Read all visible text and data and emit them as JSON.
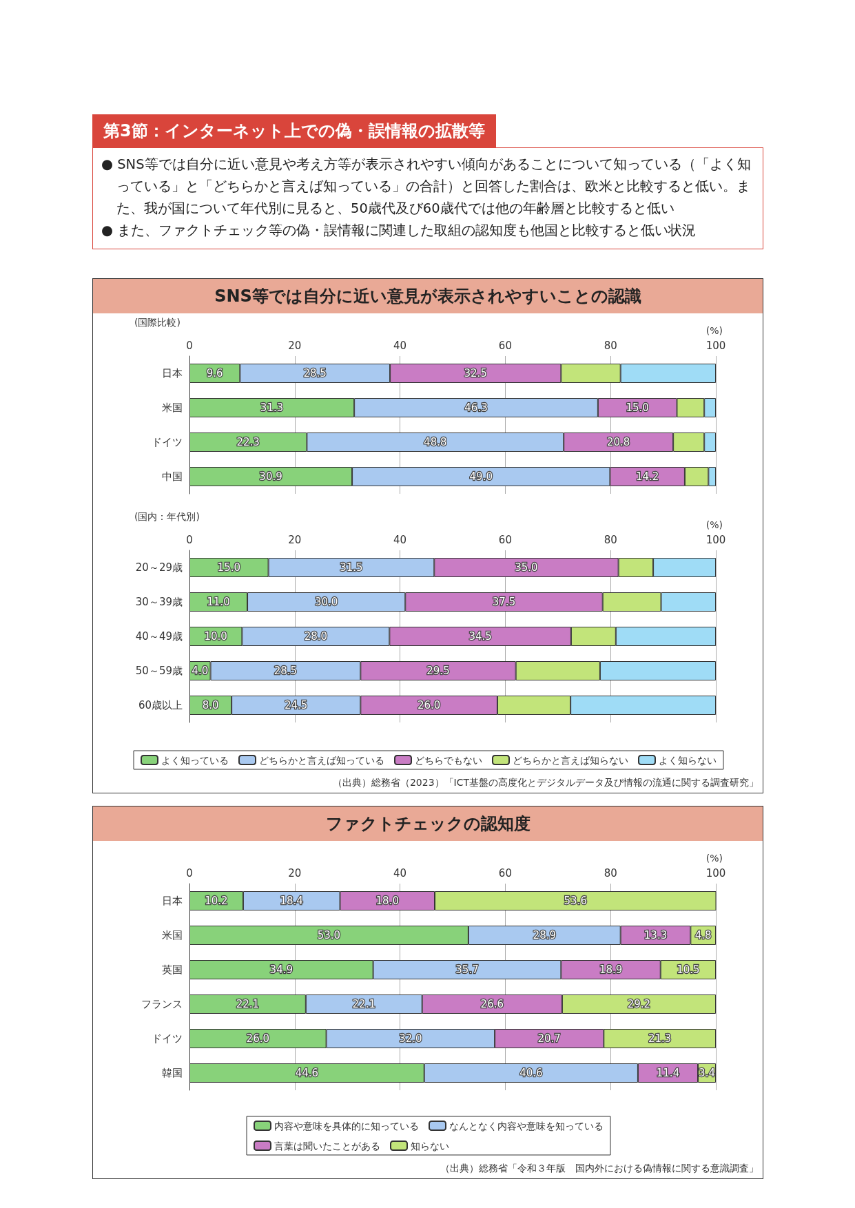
{
  "chart_data": [
    {
      "type": "other",
      "title": "第3節：インターネット上での偽・誤情報の拡散等",
      "annotations": [
        "● SNS等では自分に近い意見や考え方等が表示されやすい傾向があることについて知っている（「よく知っている」と「どちらかと言えば知っている」の合計）と回答した割合は、欧米と比較すると低い。また、我が国について年代別に見ると、50歳代及び60歳代では他の年齢層と比較すると低い",
        "● また、ファクトチェック等の偽・誤情報に関連した取組の認知度も他国と比較すると低い状況"
      ]
    },
    {
      "type": "bar",
      "title": "SNS等では自分に近い意見が表示されやすいことの認識",
      "subtitle": "(国際比較)",
      "xlabel": "(%)",
      "orientation": "horizontal",
      "stacked": true,
      "grid": "x",
      "xlim": [
        0,
        100
      ],
      "xticks": [
        0,
        20,
        40,
        60,
        80,
        100
      ],
      "categories": [
        "日本",
        "米国",
        "ドイツ",
        "中国"
      ],
      "series": [
        {
          "color": "#88d27a",
          "values": [
            9.6,
            31.3,
            22.3,
            30.9
          ],
          "value_labels": [
            "9.6",
            "31.3",
            "22.3",
            "30.9"
          ]
        },
        {
          "color": "#a9c9f0",
          "values": [
            28.5,
            46.3,
            48.8,
            49.0
          ],
          "value_labels": [
            "28.5",
            "46.3",
            "48.8",
            "49.0"
          ]
        },
        {
          "color": "#c97cc4",
          "values": [
            32.5,
            15.0,
            20.8,
            14.2
          ],
          "value_labels": [
            "32.5",
            "15.0",
            "20.8",
            "14.2"
          ]
        },
        {
          "color": "#c2e47a",
          "values": [
            11.3,
            5.2,
            5.9,
            4.5
          ]
        },
        {
          "color": "#9fdcf6",
          "values": [
            18.1,
            2.2,
            2.2,
            1.4
          ]
        }
      ]
    },
    {
      "type": "bar",
      "subtitle": "(国内：年代別)",
      "xlabel": "(%)",
      "orientation": "horizontal",
      "stacked": true,
      "grid": "x",
      "legend": "bottom",
      "xlim": [
        0,
        100
      ],
      "xticks": [
        0,
        20,
        40,
        60,
        80,
        100
      ],
      "categories": [
        "20～29歳",
        "30～39歳",
        "40～49歳",
        "50～59歳",
        "60歳以上"
      ],
      "series": [
        {
          "name": "よく知っている",
          "color": "#88d27a",
          "values": [
            15.0,
            11.0,
            10.0,
            4.0,
            8.0
          ],
          "value_labels": [
            "15.0",
            "11.0",
            "10.0",
            "4.0",
            "8.0"
          ]
        },
        {
          "name": "どちらかと言えば知っている",
          "color": "#a9c9f0",
          "values": [
            31.5,
            30.0,
            28.0,
            28.5,
            24.5
          ],
          "value_labels": [
            "31.5",
            "30.0",
            "28.0",
            "28.5",
            "24.5"
          ]
        },
        {
          "name": "どちらでもない",
          "color": "#c97cc4",
          "values": [
            35.0,
            37.5,
            34.5,
            29.5,
            26.0
          ],
          "value_labels": [
            "35.0",
            "37.5",
            "34.5",
            "29.5",
            "26.0"
          ]
        },
        {
          "name": "どちらかと言えば知らない",
          "color": "#c2e47a",
          "values": [
            6.6,
            11.1,
            8.5,
            16.0,
            13.9
          ]
        },
        {
          "name": "よく知らない",
          "color": "#9fdcf6",
          "values": [
            11.9,
            10.4,
            19.0,
            22.0,
            27.6
          ]
        }
      ],
      "annotations": [
        "（出典）総務省（2023）「ICT基盤の高度化とデジタルデータ及び情報の流通に関する調査研究」"
      ]
    },
    {
      "type": "bar",
      "title": "ファクトチェックの認知度",
      "xlabel": "(%)",
      "orientation": "horizontal",
      "stacked": true,
      "grid": "x",
      "legend": "bottom",
      "xlim": [
        0,
        100
      ],
      "xticks": [
        0,
        20,
        40,
        60,
        80,
        100
      ],
      "categories": [
        "日本",
        "米国",
        "英国",
        "フランス",
        "ドイツ",
        "韓国"
      ],
      "series": [
        {
          "name": "内容や意味を具体的に知っている",
          "color": "#88d27a",
          "values": [
            10.2,
            53.0,
            34.9,
            22.1,
            26.0,
            44.6
          ],
          "value_labels": [
            "10.2",
            "53.0",
            "34.9",
            "22.1",
            "26.0",
            "44.6"
          ]
        },
        {
          "name": "なんとなく内容や意味を知っている",
          "color": "#a9c9f0",
          "values": [
            18.4,
            28.9,
            35.7,
            22.1,
            32.0,
            40.6
          ],
          "value_labels": [
            "18.4",
            "28.9",
            "35.7",
            "22.1",
            "32.0",
            "40.6"
          ]
        },
        {
          "name": "言葉は聞いたことがある",
          "color": "#c97cc4",
          "values": [
            18.0,
            13.3,
            18.9,
            26.6,
            20.7,
            11.4
          ],
          "value_labels": [
            "18.0",
            "13.3",
            "18.9",
            "26.6",
            "20.7",
            "11.4"
          ]
        },
        {
          "name": "知らない",
          "color": "#c2e47a",
          "values": [
            53.6,
            4.8,
            10.5,
            29.2,
            21.3,
            3.4
          ],
          "value_labels": [
            "53.6",
            "4.8",
            "10.5",
            "29.2",
            "21.3",
            "3.4"
          ]
        }
      ],
      "annotations": [
        "（出典）総務省「令和３年版　国内外における偽情報に関する意識調査」"
      ]
    }
  ]
}
